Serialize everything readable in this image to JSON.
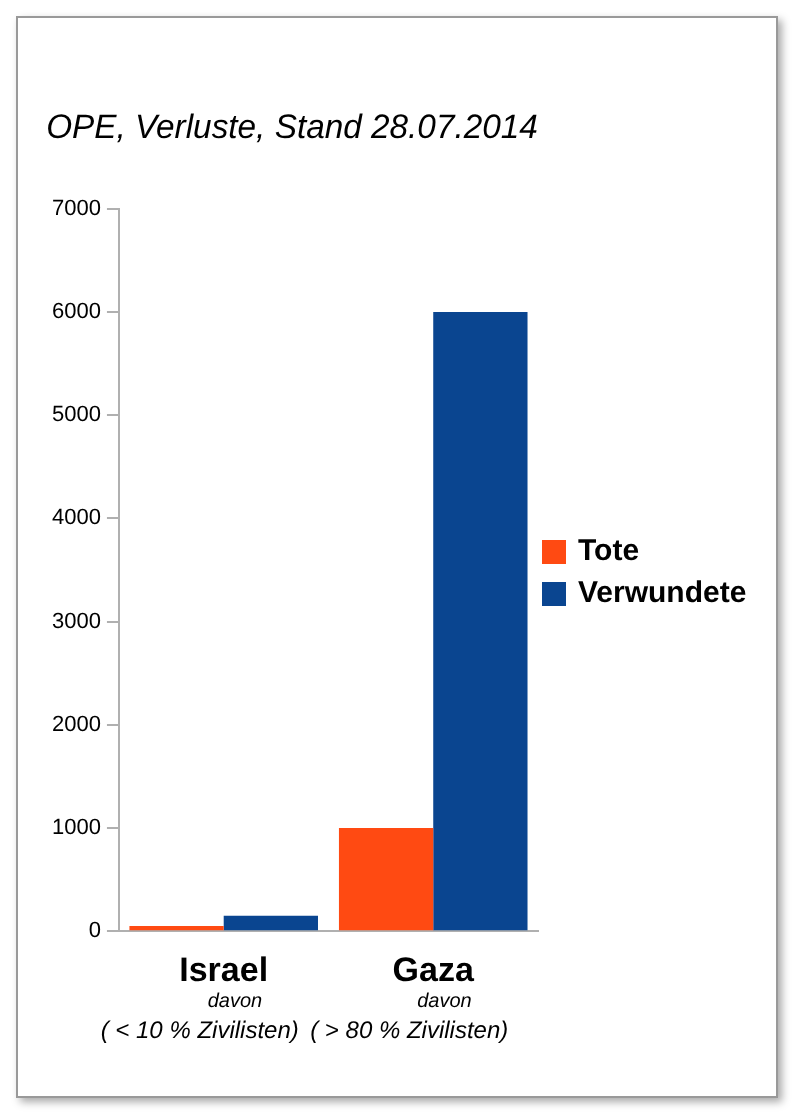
{
  "chart_data": {
    "type": "bar",
    "title": "OPE, Verluste, Stand 28.07.2014",
    "categories": [
      "Israel",
      "Gaza"
    ],
    "series": [
      {
        "name": "Tote",
        "color": "#ff4a12",
        "values": [
          50,
          1000
        ]
      },
      {
        "name": "Verwundete",
        "color": "#0a4590",
        "values": [
          150,
          6000
        ]
      }
    ],
    "ylim": [
      0,
      7000
    ],
    "yticks": [
      0,
      1000,
      2000,
      3000,
      4000,
      5000,
      6000,
      7000
    ],
    "grid": false,
    "legend": "right",
    "annotations": [
      "davon",
      "( < 10 % Zivilisten)",
      "davon",
      "( > 80 % Zivilisten)"
    ]
  }
}
